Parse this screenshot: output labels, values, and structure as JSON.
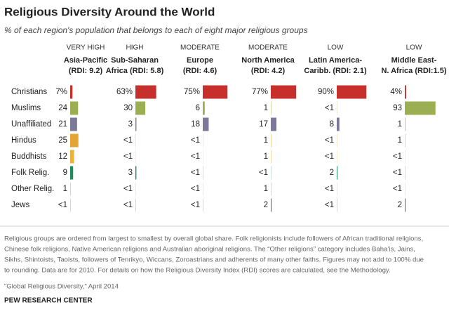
{
  "chart_data": {
    "type": "bar",
    "title": "Religious Diversity Around the World",
    "subtitle": "% of each region's population that belongs to each of eight major religious groups",
    "categories": [
      "Christians",
      "Muslims",
      "Unaffiliated",
      "Hindus",
      "Buddhists",
      "Folk Relig.",
      "Other Relig.",
      "Jews"
    ],
    "category_colors": [
      "#c62f2b",
      "#9cae52",
      "#7b7898",
      "#e3a534",
      "#e8b43c",
      "#1f8a5c",
      "#a8a8a8",
      "#555555"
    ],
    "xlim": [
      0,
      100
    ],
    "series": [
      {
        "level": "VERY HIGH",
        "name": "Asia-Pacific",
        "rdi": "(RDI: 9.2)",
        "values": [
          7,
          24,
          21,
          25,
          12,
          9,
          1,
          0.5
        ],
        "value_labels": [
          "7%",
          "24",
          "21",
          "25",
          "12",
          "9",
          "1",
          "<1"
        ]
      },
      {
        "level": "HIGH",
        "name": "Sub-Saharan",
        "rdi": "Africa (RDI: 5.8)",
        "values": [
          63,
          30,
          3,
          0.5,
          0.5,
          3,
          0.5,
          0.5
        ],
        "value_labels": [
          "63%",
          "30",
          "3",
          "<1",
          "<1",
          "3",
          "<1",
          "<1"
        ]
      },
      {
        "level": "MODERATE",
        "name": "Europe",
        "rdi": "(RDI: 4.6)",
        "values": [
          75,
          6,
          18,
          0.5,
          0.5,
          0.5,
          0.5,
          0.5
        ],
        "value_labels": [
          "75%",
          "6",
          "18",
          "<1",
          "<1",
          "<1",
          "<1",
          "<1"
        ]
      },
      {
        "level": "MODERATE",
        "name": "North America",
        "rdi": "(RDI: 4.2)",
        "values": [
          77,
          1,
          17,
          1,
          1,
          0.5,
          1,
          2
        ],
        "value_labels": [
          "77%",
          "1",
          "17",
          "1",
          "1",
          "<1",
          "1",
          "2"
        ]
      },
      {
        "level": "LOW",
        "name": "Latin America-",
        "rdi": "Caribb. (RDI: 2.1)",
        "values": [
          90,
          0.5,
          8,
          0.5,
          0.5,
          2,
          0.5,
          0.5
        ],
        "value_labels": [
          "90%",
          "<1",
          "8",
          "<1",
          "<1",
          "2",
          "<1",
          "<1"
        ]
      },
      {
        "level": "LOW",
        "name": "Middle East-",
        "rdi": "N. Africa (RDI:1.5)",
        "values": [
          4,
          93,
          1,
          1,
          0.5,
          0.5,
          0.5,
          2
        ],
        "value_labels": [
          "4%",
          "93",
          "1",
          "1",
          "<1",
          "<1",
          "<1",
          "2"
        ]
      }
    ],
    "notes": [
      "Religious groups are ordered from largest to smallest by overall global share. Folk religionists include followers of African traditional religions,",
      "Chinese folk religions, Native American religions and Australian aboriginal religions. The “Other religions” category includes Baha’is, Jains,",
      "Sikhs, Shintoists, Taoists, followers of Tenrikyo, Wiccans, Zoroastrians and adherents of many other faiths. Figures may not add to 100% due",
      "to rounding. Data are for 2010.  For details on how the Religious Diversity Index (RDI) scores are calculated, see the Methodology."
    ],
    "source": "“Global Religious Diversity,” April 2014",
    "brand": "PEW RESEARCH CENTER"
  }
}
